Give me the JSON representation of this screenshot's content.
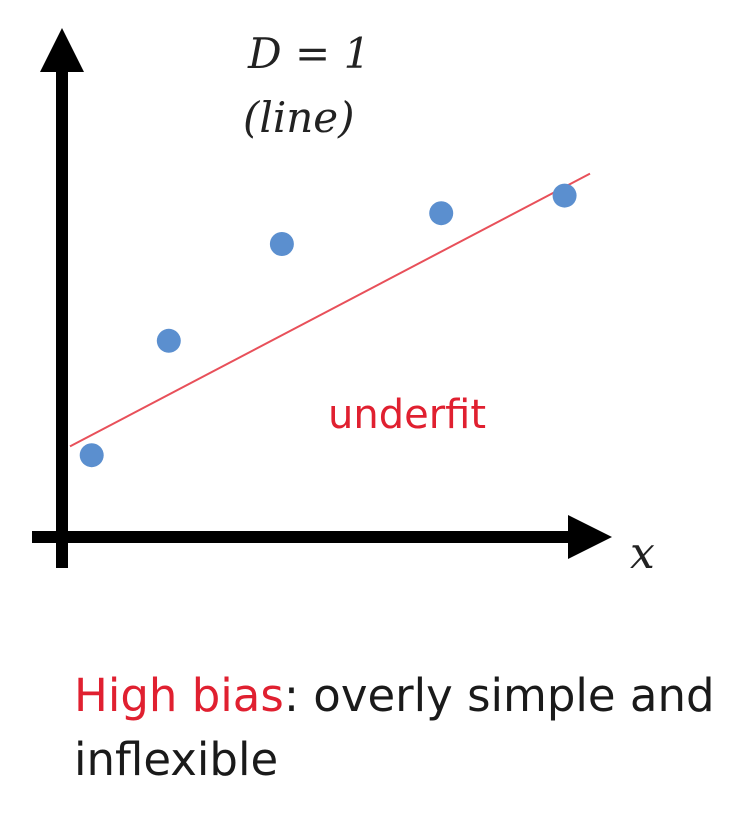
{
  "chart_data": {
    "type": "scatter",
    "title_line1": "D = 1",
    "title_line2": "(line)",
    "xlabel": "x",
    "ylabel": "",
    "xlim": [
      0,
      10
    ],
    "ylim": [
      0,
      10
    ],
    "x": [
      0.5,
      2.0,
      4.2,
      7.3,
      9.7
    ],
    "y": [
      1.7,
      4.3,
      6.5,
      7.2,
      7.6
    ],
    "fit_line": {
      "x": [
        0,
        10
      ],
      "y": [
        1.9,
        8.1
      ]
    },
    "annotation": "underfit",
    "grid": false,
    "colors": {
      "points": "#5b8fcf",
      "fit_line": "#e8505a",
      "axes": "#000000",
      "annotation": "#e02030"
    }
  },
  "caption": {
    "highlight": "High bias",
    "rest": ": overly simple and inflexible",
    "highlight_color": "#e02030"
  }
}
